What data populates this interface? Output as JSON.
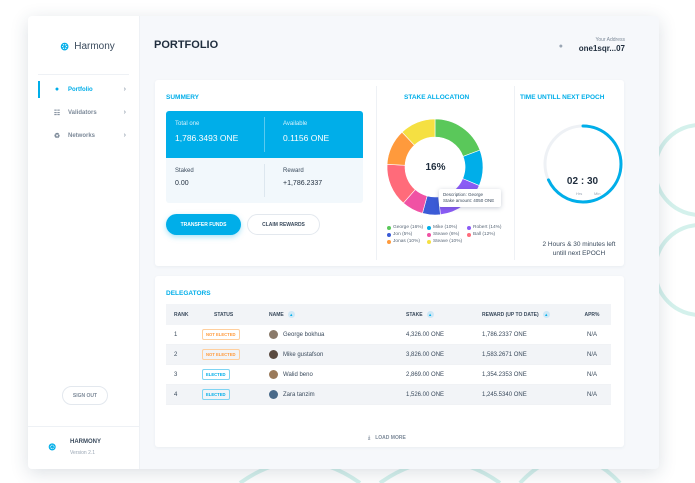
{
  "app": {
    "name": "Harmony",
    "page_title": "PORTFOLIO",
    "address_label": "Your Address",
    "address_value": "one1sqr...07"
  },
  "sidebar": {
    "items": [
      {
        "label": "Portfolio",
        "icon": "user-icon",
        "active": true
      },
      {
        "label": "Validators",
        "icon": "validators-icon",
        "active": false
      },
      {
        "label": "Networks",
        "icon": "network-icon",
        "active": false
      }
    ],
    "sign_out": "SIGN OUT",
    "footer_name": "HARMONY",
    "footer_version": "Version 2.1"
  },
  "summary": {
    "title": "SUMMERY",
    "total_label": "Total one",
    "total_value": "1,786.3493 ONE",
    "available_label": "Available",
    "available_value": "0.1156 ONE",
    "staked_label": "Staked",
    "staked_value": "0.00",
    "reward_label": "Reward",
    "reward_value": "+1,786.2337",
    "transfer_button": "TRANSFER FUNDS",
    "claim_button": "CLAIM REWARDS"
  },
  "stake_allocation": {
    "title": "STAKE ALLOCATION",
    "center_percent": "16%",
    "tooltip_line1": "Description: George",
    "tooltip_line2": "Stake amount: 4050 ONE",
    "legend": [
      {
        "label": "George (16%)",
        "color": "#5ac85a",
        "pct": 16
      },
      {
        "label": "Mike (10%)",
        "color": "#00aee9",
        "pct": 10
      },
      {
        "label": "Robert (14%)",
        "color": "#8a5cf5",
        "pct": 14
      },
      {
        "label": "Jon (5%)",
        "color": "#3b5bd6",
        "pct": 5
      },
      {
        "label": "Steave (6%)",
        "color": "#f052a4",
        "pct": 6
      },
      {
        "label": "Ball (12%)",
        "color": "#ff6b7a",
        "pct": 12
      },
      {
        "label": "Jonas (10%)",
        "color": "#ff9a3c",
        "pct": 10
      },
      {
        "label": "Steave (10%)",
        "color": "#f5e042",
        "pct": 10
      }
    ]
  },
  "epoch": {
    "title": "TIME UNTILL NEXT EPOCH",
    "hours": "02",
    "minutes": "30",
    "hrs_label": "Hrs",
    "min_label": "Min",
    "progress_fraction": 0.68,
    "note_line1": "2 Hours & 30 minutes left",
    "note_line2": "untill next EPOCH"
  },
  "delegators": {
    "title": "DELEGATORS",
    "columns": {
      "rank": "RANK",
      "status": "STATUS",
      "name": "NAME",
      "stake": "STAKE",
      "reward": "REWARD (UP TO DATE)",
      "apr": "APR%"
    },
    "rows": [
      {
        "rank": "1",
        "status": "NOT ELECTED",
        "elected": false,
        "name": "George bokhua",
        "stake": "4,326.00 ONE",
        "reward": "1,786.2337 ONE",
        "apr": "N/A"
      },
      {
        "rank": "2",
        "status": "NOT ELECTED",
        "elected": false,
        "name": "Mike gustafson",
        "stake": "3,826.00 ONE",
        "reward": "1,583.2671 ONE",
        "apr": "N/A"
      },
      {
        "rank": "3",
        "status": "ELECTED",
        "elected": true,
        "name": "Walid beno",
        "stake": "2,869.00 ONE",
        "reward": "1,354.2353 ONE",
        "apr": "N/A"
      },
      {
        "rank": "4",
        "status": "ELECTED",
        "elected": true,
        "name": "Zara tanzim",
        "stake": "1,526.00 ONE",
        "reward": "1,245.5340 ONE",
        "apr": "N/A"
      }
    ],
    "load_more": "LOAD MORE"
  },
  "colors": {
    "accent": "#00aee9",
    "not_elected": "#ff9a3c"
  }
}
